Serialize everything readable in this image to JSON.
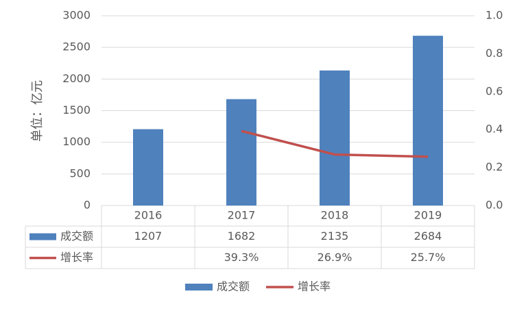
{
  "chart_data": {
    "type": "bar",
    "y_label": "单位：亿元",
    "categories": [
      "2016",
      "2017",
      "2018",
      "2019"
    ],
    "series": [
      {
        "name": "成交额",
        "type": "bar",
        "color": "#4f81bd",
        "values": [
          1207,
          1682,
          2135,
          2684
        ]
      },
      {
        "name": "增长率",
        "type": "line",
        "axis": "y2",
        "color": "#c0504d",
        "values": [
          null,
          0.393,
          0.269,
          0.257
        ],
        "value_labels": [
          null,
          "39.3%",
          "26.9%",
          "25.7%"
        ]
      }
    ],
    "ylim": [
      0,
      3000
    ],
    "yticks": [
      0,
      500,
      1000,
      1500,
      2000,
      2500,
      3000
    ],
    "y2lim": [
      0,
      1
    ],
    "y2ticks": [
      {
        "value": 0,
        "label": "0.0"
      },
      0.2,
      0.4,
      0.6,
      0.8,
      {
        "value": 1,
        "label": "1.0"
      }
    ],
    "grid": true,
    "legend": "bottom",
    "data_table": true
  }
}
